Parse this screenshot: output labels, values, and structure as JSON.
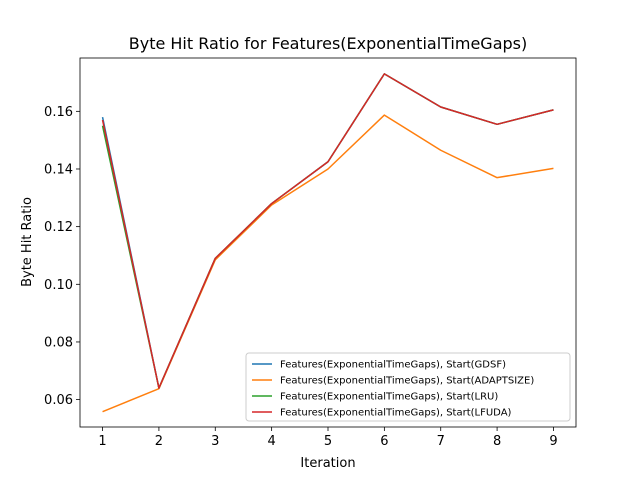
{
  "chart_data": {
    "type": "line",
    "title": "Byte Hit Ratio for Features(ExponentialTimeGaps)",
    "xlabel": "Iteration",
    "ylabel": "Byte Hit Ratio",
    "x": [
      1,
      2,
      3,
      4,
      5,
      6,
      7,
      8,
      9
    ],
    "xlim": [
      0.6,
      9.4
    ],
    "ylim": [
      0.0505,
      0.1785
    ],
    "xticks": [
      1,
      2,
      3,
      4,
      5,
      6,
      7,
      8,
      9
    ],
    "yticks": [
      0.06,
      0.08,
      0.1,
      0.12,
      0.14,
      0.16
    ],
    "ytick_labels": [
      "0.06",
      "0.08",
      "0.10",
      "0.12",
      "0.14",
      "0.16"
    ],
    "grid": false,
    "legend_position": "lower-right",
    "series": [
      {
        "name": "Features(ExponentialTimeGaps), Start(GDSF)",
        "color": "#1f77b4",
        "values": [
          0.158,
          0.064,
          0.109,
          0.128,
          0.1425,
          0.173,
          0.1615,
          0.1555,
          0.1605
        ]
      },
      {
        "name": "Features(ExponentialTimeGaps), Start(ADAPTSIZE)",
        "color": "#ff7f0e",
        "values": [
          0.0558,
          0.0638,
          0.1085,
          0.1275,
          0.14,
          0.1587,
          0.1465,
          0.137,
          0.1402
        ]
      },
      {
        "name": "Features(ExponentialTimeGaps), Start(LRU)",
        "color": "#2ca02c",
        "values": [
          0.155,
          0.064,
          0.109,
          0.128,
          0.1425,
          0.173,
          0.1615,
          0.1555,
          0.1605
        ]
      },
      {
        "name": "Features(ExponentialTimeGaps), Start(LFUDA)",
        "color": "#d62728",
        "values": [
          0.157,
          0.064,
          0.109,
          0.128,
          0.1425,
          0.173,
          0.1615,
          0.1555,
          0.1605
        ]
      }
    ]
  }
}
